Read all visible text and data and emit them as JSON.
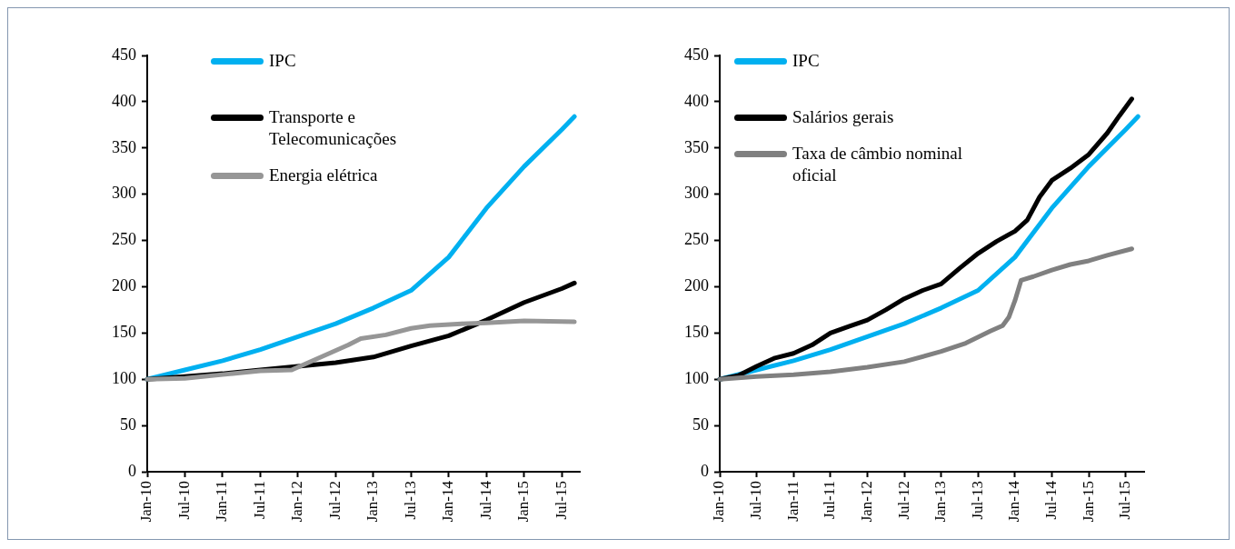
{
  "chart_data": [
    {
      "type": "line",
      "xlim": [
        "2010-01",
        "2015-10"
      ],
      "ylim": [
        0,
        450
      ],
      "yticks": [
        0,
        50,
        100,
        150,
        200,
        250,
        300,
        350,
        400,
        450
      ],
      "xticks": [
        {
          "value": "2010-01",
          "label": "Jan-10"
        },
        {
          "value": "2010-07",
          "label": "Jul-10"
        },
        {
          "value": "2011-01",
          "label": "Jan-11"
        },
        {
          "value": "2011-07",
          "label": "Jul-11"
        },
        {
          "value": "2012-01",
          "label": "Jan-12"
        },
        {
          "value": "2012-07",
          "label": "Jul-12"
        },
        {
          "value": "2013-01",
          "label": "Jan-13"
        },
        {
          "value": "2013-07",
          "label": "Jul-13"
        },
        {
          "value": "2014-01",
          "label": "Jan-14"
        },
        {
          "value": "2014-07",
          "label": "Jul-14"
        },
        {
          "value": "2015-01",
          "label": "Jan-15"
        },
        {
          "value": "2015-07",
          "label": "Jul-15"
        }
      ],
      "grid": false,
      "legend": "top left",
      "line_style": "solid",
      "marker": "none",
      "series": [
        {
          "name": "IPC",
          "color": "#00b0f0",
          "x": [
            "2010-01",
            "2010-07",
            "2011-01",
            "2011-07",
            "2012-01",
            "2012-07",
            "2013-01",
            "2013-07",
            "2014-01",
            "2014-07",
            "2015-01",
            "2015-07",
            "2015-09"
          ],
          "values": [
            100,
            110,
            120,
            132,
            146,
            160,
            177,
            196,
            232,
            285,
            330,
            370,
            384
          ]
        },
        {
          "name": "Transporte e Telecomunicações",
          "color": "#000000",
          "x": [
            "2010-01",
            "2010-07",
            "2011-01",
            "2011-07",
            "2012-01",
            "2012-07",
            "2013-01",
            "2013-07",
            "2014-01",
            "2014-07",
            "2015-01",
            "2015-07",
            "2015-09"
          ],
          "values": [
            100,
            103,
            106,
            110,
            114,
            118,
            124,
            136,
            147,
            164,
            183,
            198,
            204
          ]
        },
        {
          "name": "Energia elétrica",
          "color": "#969696",
          "x": [
            "2010-01",
            "2010-07",
            "2011-01",
            "2011-07",
            "2011-12",
            "2012-05",
            "2012-09",
            "2012-11",
            "2013-03",
            "2013-07",
            "2013-10",
            "2014-03",
            "2014-07",
            "2015-01",
            "2015-09"
          ],
          "values": [
            100,
            101,
            105,
            109,
            110,
            125,
            137,
            144,
            148,
            155,
            158,
            160,
            161,
            163,
            162
          ]
        }
      ]
    },
    {
      "type": "line",
      "xlim": [
        "2010-01",
        "2015-10"
      ],
      "ylim": [
        0,
        450
      ],
      "yticks": [
        0,
        50,
        100,
        150,
        200,
        250,
        300,
        350,
        400,
        450
      ],
      "xticks": [
        {
          "value": "2010-01",
          "label": "Jan-10"
        },
        {
          "value": "2010-07",
          "label": "Jul-10"
        },
        {
          "value": "2011-01",
          "label": "Jan-11"
        },
        {
          "value": "2011-07",
          "label": "Jul-11"
        },
        {
          "value": "2012-01",
          "label": "Jan-12"
        },
        {
          "value": "2012-07",
          "label": "Jul-12"
        },
        {
          "value": "2013-01",
          "label": "Jan-13"
        },
        {
          "value": "2013-07",
          "label": "Jul-13"
        },
        {
          "value": "2014-01",
          "label": "Jan-14"
        },
        {
          "value": "2014-07",
          "label": "Jul-14"
        },
        {
          "value": "2015-01",
          "label": "Jan-15"
        },
        {
          "value": "2015-07",
          "label": "Jul-15"
        }
      ],
      "grid": false,
      "legend": "top left",
      "line_style": "solid",
      "marker": "none",
      "series": [
        {
          "name": "IPC",
          "color": "#00b0f0",
          "x": [
            "2010-01",
            "2010-07",
            "2011-01",
            "2011-07",
            "2012-01",
            "2012-07",
            "2013-01",
            "2013-07",
            "2014-01",
            "2014-07",
            "2015-01",
            "2015-07",
            "2015-09"
          ],
          "values": [
            100,
            110,
            120,
            132,
            146,
            160,
            177,
            196,
            232,
            285,
            330,
            370,
            384
          ]
        },
        {
          "name": "Salários gerais",
          "color": "#000000",
          "x": [
            "2010-01",
            "2010-04",
            "2010-07",
            "2010-10",
            "2011-01",
            "2011-04",
            "2011-07",
            "2011-10",
            "2012-01",
            "2012-04",
            "2012-07",
            "2012-10",
            "2013-01",
            "2013-04",
            "2013-07",
            "2013-10",
            "2014-01",
            "2014-03",
            "2014-05",
            "2014-07",
            "2014-10",
            "2015-01",
            "2015-04",
            "2015-06",
            "2015-08"
          ],
          "values": [
            100,
            104,
            114,
            123,
            128,
            137,
            150,
            157,
            164,
            175,
            187,
            196,
            203,
            220,
            236,
            249,
            260,
            272,
            297,
            315,
            328,
            343,
            366,
            385,
            403
          ]
        },
        {
          "name": "Taxa de câmbio nominal oficial",
          "color": "#808080",
          "x": [
            "2010-01",
            "2010-07",
            "2011-01",
            "2011-07",
            "2012-01",
            "2012-07",
            "2013-01",
            "2013-05",
            "2013-09",
            "2013-11",
            "2013-12",
            "2014-01",
            "2014-02",
            "2014-04",
            "2014-07",
            "2014-10",
            "2015-01",
            "2015-04",
            "2015-08"
          ],
          "values": [
            100,
            103,
            105,
            108,
            113,
            119,
            130,
            139,
            152,
            158,
            167,
            185,
            207,
            211,
            218,
            224,
            228,
            234,
            241
          ]
        }
      ]
    }
  ]
}
